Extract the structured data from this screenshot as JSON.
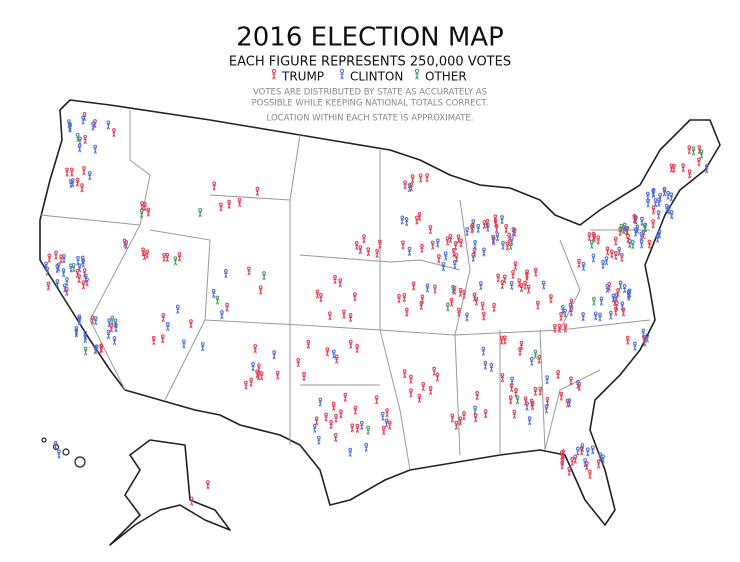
{
  "header": {
    "title": "2016 ELECTION MAP",
    "subtitle": "EACH FIGURE REPRESENTS 250,000 VOTES"
  },
  "legend": [
    {
      "name": "TRUMP",
      "color": "#e03a4e"
    },
    {
      "name": "CLINTON",
      "color": "#4a6cd4"
    },
    {
      "name": "OTHER",
      "color": "#3f9a5e"
    }
  ],
  "note": [
    "VOTES ARE DISTRIBUTED BY STATE AS ACCURATELY AS",
    "POSSIBLE WHILE KEEPING NATIONAL TOTALS CORRECT.",
    "LOCATION WITHIN EACH STATE IS APPROXIMATE."
  ]
}
